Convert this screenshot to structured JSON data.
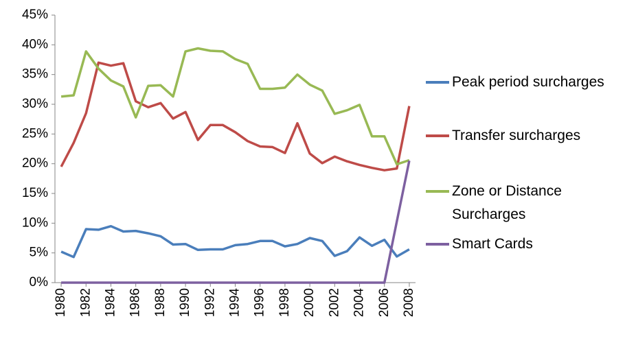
{
  "chart_data": {
    "type": "line",
    "x": [
      1980,
      1981,
      1982,
      1983,
      1984,
      1985,
      1986,
      1987,
      1988,
      1989,
      1990,
      1991,
      1992,
      1993,
      1994,
      1995,
      1996,
      1997,
      1998,
      1999,
      2000,
      2001,
      2002,
      2003,
      2004,
      2005,
      2006,
      2007,
      2008
    ],
    "xlim": [
      1979.5,
      2008.5
    ],
    "xticks": [
      1980,
      1982,
      1984,
      1986,
      1988,
      1990,
      1992,
      1994,
      1996,
      1998,
      2000,
      2002,
      2004,
      2006,
      2008
    ],
    "ylim": [
      0,
      45
    ],
    "yticks": [
      {
        "value": 0,
        "label": "0%"
      },
      {
        "value": 5,
        "label": "5%"
      },
      {
        "value": 10,
        "label": "10%"
      },
      {
        "value": 15,
        "label": "15%"
      },
      {
        "value": 20,
        "label": "20%"
      },
      {
        "value": 25,
        "label": "25%"
      },
      {
        "value": 30,
        "label": "30%"
      },
      {
        "value": 35,
        "label": "35%"
      },
      {
        "value": 40,
        "label": "40%"
      },
      {
        "value": 45,
        "label": "45%"
      }
    ],
    "grid": false,
    "legend": "right",
    "series": [
      {
        "name": "Peak period surcharges",
        "color": "#4a7ebb",
        "values": [
          5.2,
          4.3,
          9.0,
          8.9,
          9.5,
          8.6,
          8.7,
          8.3,
          7.8,
          6.4,
          6.5,
          5.5,
          5.6,
          5.6,
          6.3,
          6.5,
          7.0,
          7.0,
          6.1,
          6.5,
          7.5,
          7.0,
          4.5,
          5.3,
          7.6,
          6.2,
          7.2,
          4.4,
          5.6
        ]
      },
      {
        "name": "Transfer surcharges",
        "color": "#be4b48",
        "values": [
          19.5,
          23.5,
          28.5,
          37.0,
          36.5,
          36.9,
          30.5,
          29.5,
          30.2,
          27.6,
          28.7,
          24.0,
          26.5,
          26.5,
          25.3,
          23.8,
          22.9,
          22.8,
          21.8,
          26.8,
          21.7,
          20.1,
          21.2,
          20.4,
          19.8,
          19.3,
          18.9,
          19.2,
          29.7
        ]
      },
      {
        "name": "Zone or Distance Surcharges",
        "color": "#98b954",
        "values": [
          31.3,
          31.5,
          38.9,
          36.0,
          34.0,
          33.0,
          27.8,
          33.1,
          33.2,
          31.3,
          38.9,
          39.4,
          39.0,
          38.9,
          37.6,
          36.8,
          32.6,
          32.6,
          32.8,
          35.0,
          33.3,
          32.3,
          28.4,
          29.0,
          29.9,
          24.6,
          24.6,
          19.9,
          20.6
        ]
      },
      {
        "name": "Smart Cards",
        "color": "#7d60a0",
        "values": [
          0,
          0,
          0,
          0,
          0,
          0,
          0,
          0,
          0,
          0,
          0,
          0,
          0,
          0,
          0,
          0,
          0,
          0,
          0,
          0,
          0,
          0,
          0,
          0,
          0,
          0,
          0,
          10.3,
          20.5
        ]
      }
    ]
  }
}
